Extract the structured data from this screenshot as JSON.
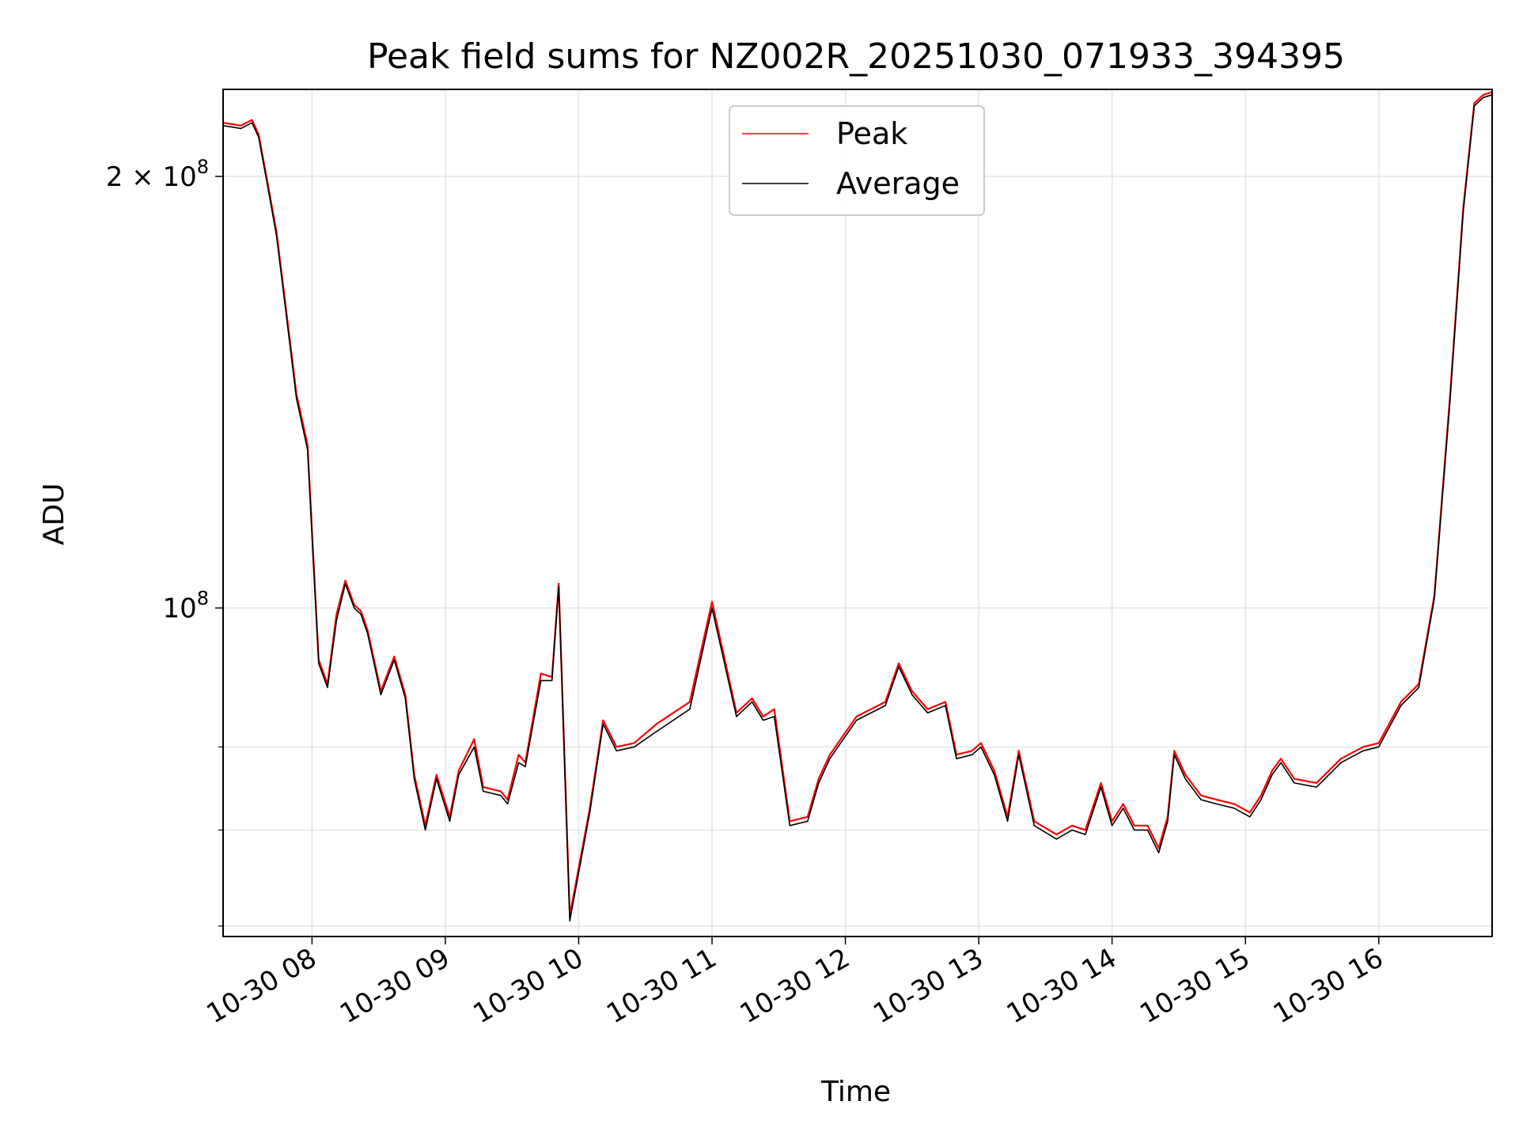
{
  "chart_data": {
    "type": "line",
    "title": "Peak field sums for NZ002R_20251030_071933_394395",
    "xlabel": "Time",
    "ylabel": "ADU",
    "yscale": "log",
    "ylim": [
      59000000,
      230000000
    ],
    "xlim": [
      "2025-10-30 07:20",
      "2025-10-30 16:51"
    ],
    "x_tick_labels": [
      "10-30 08",
      "10-30 09",
      "10-30 10",
      "10-30 11",
      "10-30 12",
      "10-30 13",
      "10-30 14",
      "10-30 15",
      "10-30 16"
    ],
    "y_tick_labels": [
      {
        "value": 200000000,
        "base": "2",
        "mult": "×",
        "pow": "10",
        "exp": "8"
      },
      {
        "value": 100000000,
        "base": "",
        "mult": "",
        "pow": "10",
        "exp": "8"
      }
    ],
    "y_minor_ticks": [
      60000000,
      70000000,
      80000000
    ],
    "grid": true,
    "legend_position": "upper center",
    "colors": {
      "Peak": "#ff0000",
      "Average": "#000000"
    },
    "series": [
      {
        "name": "Peak",
        "x": [
          "2025-10-30 07:20",
          "2025-10-30 07:28",
          "2025-10-30 07:33",
          "2025-10-30 07:36",
          "2025-10-30 07:40",
          "2025-10-30 07:44",
          "2025-10-30 07:48",
          "2025-10-30 07:53",
          "2025-10-30 07:58",
          "2025-10-30 08:03",
          "2025-10-30 08:07",
          "2025-10-30 08:11",
          "2025-10-30 08:15",
          "2025-10-30 08:19",
          "2025-10-30 08:22",
          "2025-10-30 08:25",
          "2025-10-30 08:31",
          "2025-10-30 08:37",
          "2025-10-30 08:42",
          "2025-10-30 08:46",
          "2025-10-30 08:51",
          "2025-10-30 08:56",
          "2025-10-30 09:02",
          "2025-10-30 09:06",
          "2025-10-30 09:13",
          "2025-10-30 09:17",
          "2025-10-30 09:25",
          "2025-10-30 09:28",
          "2025-10-30 09:33",
          "2025-10-30 09:36",
          "2025-10-30 09:43",
          "2025-10-30 09:48",
          "2025-10-30 09:51",
          "2025-10-30 09:56",
          "2025-10-30 10:05",
          "2025-10-30 10:11",
          "2025-10-30 10:17",
          "2025-10-30 10:25",
          "2025-10-30 10:35",
          "2025-10-30 10:50",
          "2025-10-30 11:00",
          "2025-10-30 11:11",
          "2025-10-30 11:18",
          "2025-10-30 11:23",
          "2025-10-30 11:28",
          "2025-10-30 11:35",
          "2025-10-30 11:43",
          "2025-10-30 11:48",
          "2025-10-30 11:53",
          "2025-10-30 12:05",
          "2025-10-30 12:18",
          "2025-10-30 12:24",
          "2025-10-30 12:30",
          "2025-10-30 12:37",
          "2025-10-30 12:45",
          "2025-10-30 12:50",
          "2025-10-30 12:57",
          "2025-10-30 13:01",
          "2025-10-30 13:07",
          "2025-10-30 13:13",
          "2025-10-30 13:18",
          "2025-10-30 13:25",
          "2025-10-30 13:35",
          "2025-10-30 13:42",
          "2025-10-30 13:48",
          "2025-10-30 13:55",
          "2025-10-30 14:00",
          "2025-10-30 14:05",
          "2025-10-30 14:10",
          "2025-10-30 14:16",
          "2025-10-30 14:21",
          "2025-10-30 14:25",
          "2025-10-30 14:28",
          "2025-10-30 14:33",
          "2025-10-30 14:40",
          "2025-10-30 14:47",
          "2025-10-30 14:55",
          "2025-10-30 15:02",
          "2025-10-30 15:07",
          "2025-10-30 15:12",
          "2025-10-30 15:16",
          "2025-10-30 15:22",
          "2025-10-30 15:32",
          "2025-10-30 15:43",
          "2025-10-30 15:53",
          "2025-10-30 16:00",
          "2025-10-30 16:10",
          "2025-10-30 16:18",
          "2025-10-30 16:25",
          "2025-10-30 16:32",
          "2025-10-30 16:38",
          "2025-10-30 16:43",
          "2025-10-30 16:47",
          "2025-10-30 16:51"
        ],
        "y": [
          218000000,
          217000000,
          219000000,
          214000000,
          198000000,
          183000000,
          163000000,
          141000000,
          130000000,
          92000000,
          88500000,
          99000000,
          104500000,
          100500000,
          99500000,
          96500000,
          87500000,
          92500000,
          87000000,
          76500000,
          70500000,
          76500000,
          71500000,
          77000000,
          81000000,
          75000000,
          74500000,
          73500000,
          79000000,
          78000000,
          90000000,
          89500000,
          104000000,
          61000000,
          72500000,
          83500000,
          80000000,
          80500000,
          83000000,
          86000000,
          101000000,
          84500000,
          86500000,
          84000000,
          85000000,
          71000000,
          71500000,
          76000000,
          79000000,
          84000000,
          86000000,
          91500000,
          87500000,
          85000000,
          86000000,
          79000000,
          79500000,
          80500000,
          77000000,
          71500000,
          79500000,
          71000000,
          69500000,
          70500000,
          70000000,
          75500000,
          71000000,
          73000000,
          70500000,
          70500000,
          68000000,
          71500000,
          79500000,
          76500000,
          74000000,
          73500000,
          73000000,
          72000000,
          74000000,
          77000000,
          78500000,
          76000000,
          75500000,
          78500000,
          80000000,
          80500000,
          86000000,
          88500000,
          102000000,
          140000000,
          190000000,
          225000000,
          228000000,
          229000000
        ]
      },
      {
        "name": "Average",
        "x": [
          "2025-10-30 07:20",
          "2025-10-30 07:28",
          "2025-10-30 07:33",
          "2025-10-30 07:36",
          "2025-10-30 07:40",
          "2025-10-30 07:44",
          "2025-10-30 07:48",
          "2025-10-30 07:53",
          "2025-10-30 07:58",
          "2025-10-30 08:03",
          "2025-10-30 08:07",
          "2025-10-30 08:11",
          "2025-10-30 08:15",
          "2025-10-30 08:19",
          "2025-10-30 08:22",
          "2025-10-30 08:25",
          "2025-10-30 08:31",
          "2025-10-30 08:37",
          "2025-10-30 08:42",
          "2025-10-30 08:46",
          "2025-10-30 08:51",
          "2025-10-30 08:56",
          "2025-10-30 09:02",
          "2025-10-30 09:06",
          "2025-10-30 09:13",
          "2025-10-30 09:17",
          "2025-10-30 09:25",
          "2025-10-30 09:28",
          "2025-10-30 09:33",
          "2025-10-30 09:36",
          "2025-10-30 09:43",
          "2025-10-30 09:48",
          "2025-10-30 09:51",
          "2025-10-30 09:56",
          "2025-10-30 10:05",
          "2025-10-30 10:11",
          "2025-10-30 10:17",
          "2025-10-30 10:25",
          "2025-10-30 10:35",
          "2025-10-30 10:50",
          "2025-10-30 11:00",
          "2025-10-30 11:11",
          "2025-10-30 11:18",
          "2025-10-30 11:23",
          "2025-10-30 11:28",
          "2025-10-30 11:35",
          "2025-10-30 11:43",
          "2025-10-30 11:48",
          "2025-10-30 11:53",
          "2025-10-30 12:05",
          "2025-10-30 12:18",
          "2025-10-30 12:24",
          "2025-10-30 12:30",
          "2025-10-30 12:37",
          "2025-10-30 12:45",
          "2025-10-30 12:50",
          "2025-10-30 12:57",
          "2025-10-30 13:01",
          "2025-10-30 13:07",
          "2025-10-30 13:13",
          "2025-10-30 13:18",
          "2025-10-30 13:25",
          "2025-10-30 13:35",
          "2025-10-30 13:42",
          "2025-10-30 13:48",
          "2025-10-30 13:55",
          "2025-10-30 14:00",
          "2025-10-30 14:05",
          "2025-10-30 14:10",
          "2025-10-30 14:16",
          "2025-10-30 14:21",
          "2025-10-30 14:25",
          "2025-10-30 14:28",
          "2025-10-30 14:33",
          "2025-10-30 14:40",
          "2025-10-30 14:47",
          "2025-10-30 14:55",
          "2025-10-30 15:02",
          "2025-10-30 15:07",
          "2025-10-30 15:12",
          "2025-10-30 15:16",
          "2025-10-30 15:22",
          "2025-10-30 15:32",
          "2025-10-30 15:43",
          "2025-10-30 15:53",
          "2025-10-30 16:00",
          "2025-10-30 16:10",
          "2025-10-30 16:18",
          "2025-10-30 16:25",
          "2025-10-30 16:32",
          "2025-10-30 16:38",
          "2025-10-30 16:43",
          "2025-10-30 16:47",
          "2025-10-30 16:51"
        ],
        "y": [
          217000000,
          216000000,
          218000000,
          213000000,
          197000000,
          182000000,
          162000000,
          140000000,
          129000000,
          91500000,
          88000000,
          98000000,
          104000000,
          100000000,
          99000000,
          96000000,
          87000000,
          92000000,
          86500000,
          76000000,
          70000000,
          76000000,
          71000000,
          76500000,
          80000000,
          74500000,
          74000000,
          73000000,
          78000000,
          77500000,
          89000000,
          89000000,
          103500000,
          60500000,
          72000000,
          83000000,
          79500000,
          80000000,
          82000000,
          85000000,
          100000000,
          84000000,
          86000000,
          83500000,
          84000000,
          70500000,
          71000000,
          75500000,
          78500000,
          83500000,
          85500000,
          91000000,
          87000000,
          84500000,
          85500000,
          78500000,
          79000000,
          80000000,
          76500000,
          71000000,
          79000000,
          70500000,
          69000000,
          70000000,
          69500000,
          75000000,
          70500000,
          72500000,
          70000000,
          70000000,
          67500000,
          71000000,
          79000000,
          76000000,
          73500000,
          73000000,
          72500000,
          71500000,
          73500000,
          76500000,
          78000000,
          75500000,
          75000000,
          78000000,
          79500000,
          80000000,
          85500000,
          88000000,
          101500000,
          139000000,
          189000000,
          224000000,
          227000000,
          228000000
        ]
      }
    ]
  }
}
